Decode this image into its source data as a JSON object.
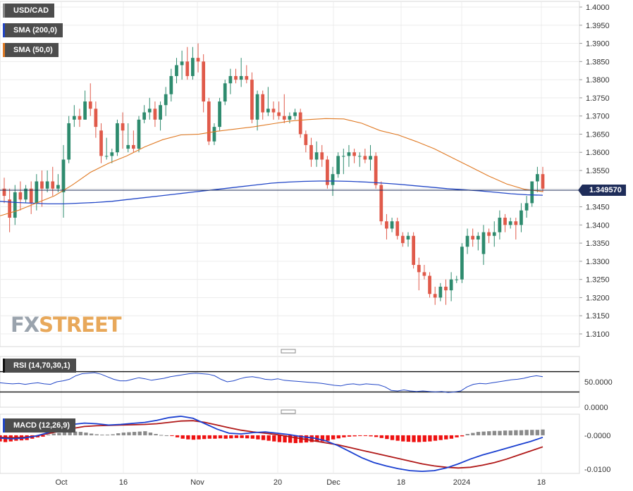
{
  "legends": {
    "main": "USD/CAD",
    "sma200": "SMA (200,0)",
    "sma50": "SMA (50,0)",
    "rsi": "RSI (14,70,30,1)",
    "macd": "MACD (12,26,9)"
  },
  "current_price": "1.349570",
  "logo": {
    "fx": "FX",
    "street": "STREET"
  },
  "colors": {
    "up": "#2e8b6e",
    "down": "#e05a4a",
    "sma200": "#2146c7",
    "sma50": "#e07a24",
    "macd_line": "#1a3fd0",
    "signal_line": "#b01818",
    "hist_pos": "#8a8a8a",
    "hist_neg": "#ee1111",
    "rsi_line": "#2146c7",
    "price_line": "#1f2d5a"
  },
  "chart_data": [
    {
      "type": "candlestick",
      "title": "USD/CAD",
      "y_ticks": [
        "1.4000",
        "1.3950",
        "1.3900",
        "1.3850",
        "1.3800",
        "1.3750",
        "1.3700",
        "1.3650",
        "1.3600",
        "1.3550",
        "1.3500",
        "1.3450",
        "1.3400",
        "1.3350",
        "1.3300",
        "1.3250",
        "1.3200",
        "1.3150",
        "1.3100"
      ],
      "x_ticks": [
        "Oct",
        "16",
        "Nov",
        "20",
        "Dec",
        "18",
        "2024",
        "18"
      ],
      "ylim": [
        1.306,
        1.401
      ],
      "ohlc": [
        [
          1.35,
          1.353,
          1.346,
          1.348
        ],
        [
          1.347,
          1.35,
          1.338,
          1.342
        ],
        [
          1.342,
          1.351,
          1.34,
          1.349
        ],
        [
          1.349,
          1.352,
          1.344,
          1.347
        ],
        [
          1.347,
          1.351,
          1.346,
          1.35
        ],
        [
          1.35,
          1.352,
          1.343,
          1.346
        ],
        [
          1.346,
          1.354,
          1.344,
          1.352
        ],
        [
          1.352,
          1.355,
          1.345,
          1.35
        ],
        [
          1.35,
          1.355,
          1.349,
          1.352
        ],
        [
          1.352,
          1.356,
          1.348,
          1.35
        ],
        [
          1.35,
          1.354,
          1.349,
          1.351
        ],
        [
          1.349,
          1.362,
          1.342,
          1.358
        ],
        [
          1.358,
          1.37,
          1.357,
          1.368
        ],
        [
          1.369,
          1.373,
          1.367,
          1.37
        ],
        [
          1.37,
          1.372,
          1.367,
          1.369
        ],
        [
          1.369,
          1.377,
          1.369,
          1.374
        ],
        [
          1.374,
          1.379,
          1.37,
          1.372
        ],
        [
          1.372,
          1.374,
          1.364,
          1.367
        ],
        [
          1.366,
          1.368,
          1.357,
          1.359
        ],
        [
          1.359,
          1.364,
          1.358,
          1.359
        ],
        [
          1.359,
          1.361,
          1.357,
          1.36
        ],
        [
          1.36,
          1.369,
          1.359,
          1.368
        ],
        [
          1.368,
          1.371,
          1.361,
          1.366
        ],
        [
          1.361,
          1.368,
          1.36,
          1.362
        ],
        [
          1.362,
          1.366,
          1.36,
          1.361
        ],
        [
          1.361,
          1.37,
          1.36,
          1.369
        ],
        [
          1.369,
          1.373,
          1.368,
          1.371
        ],
        [
          1.371,
          1.375,
          1.369,
          1.372
        ],
        [
          1.372,
          1.374,
          1.367,
          1.369
        ],
        [
          1.369,
          1.374,
          1.366,
          1.373
        ],
        [
          1.373,
          1.378,
          1.37,
          1.376
        ],
        [
          1.376,
          1.383,
          1.374,
          1.381
        ],
        [
          1.381,
          1.386,
          1.379,
          1.384
        ],
        [
          1.384,
          1.388,
          1.38,
          1.385
        ],
        [
          1.385,
          1.389,
          1.38,
          1.381
        ],
        [
          1.381,
          1.389,
          1.38,
          1.386
        ],
        [
          1.386,
          1.39,
          1.382,
          1.385
        ],
        [
          1.385,
          1.387,
          1.371,
          1.374
        ],
        [
          1.374,
          1.375,
          1.362,
          1.363
        ],
        [
          1.363,
          1.368,
          1.362,
          1.367
        ],
        [
          1.367,
          1.375,
          1.366,
          1.374
        ],
        [
          1.374,
          1.38,
          1.373,
          1.379
        ],
        [
          1.379,
          1.383,
          1.376,
          1.381
        ],
        [
          1.381,
          1.383,
          1.379,
          1.38
        ],
        [
          1.38,
          1.386,
          1.378,
          1.381
        ],
        [
          1.381,
          1.384,
          1.379,
          1.38
        ],
        [
          1.38,
          1.382,
          1.368,
          1.369
        ],
        [
          1.369,
          1.377,
          1.366,
          1.376
        ],
        [
          1.376,
          1.377,
          1.369,
          1.371
        ],
        [
          1.371,
          1.378,
          1.37,
          1.372
        ],
        [
          1.372,
          1.374,
          1.369,
          1.371
        ],
        [
          1.371,
          1.374,
          1.369,
          1.37
        ],
        [
          1.37,
          1.376,
          1.368,
          1.369
        ],
        [
          1.369,
          1.371,
          1.368,
          1.37
        ],
        [
          1.37,
          1.372,
          1.369,
          1.371
        ],
        [
          1.371,
          1.372,
          1.364,
          1.365
        ],
        [
          1.365,
          1.366,
          1.36,
          1.362
        ],
        [
          1.362,
          1.364,
          1.356,
          1.358
        ],
        [
          1.358,
          1.363,
          1.356,
          1.36
        ],
        [
          1.36,
          1.362,
          1.356,
          1.358
        ],
        [
          1.358,
          1.359,
          1.35,
          1.351
        ],
        [
          1.351,
          1.356,
          1.348,
          1.354
        ],
        [
          1.354,
          1.36,
          1.353,
          1.359
        ],
        [
          1.359,
          1.361,
          1.354,
          1.359
        ],
        [
          1.359,
          1.362,
          1.356,
          1.36
        ],
        [
          1.36,
          1.361,
          1.357,
          1.359
        ],
        [
          1.359,
          1.36,
          1.356,
          1.359
        ],
        [
          1.359,
          1.361,
          1.357,
          1.358
        ],
        [
          1.358,
          1.362,
          1.355,
          1.359
        ],
        [
          1.359,
          1.36,
          1.35,
          1.351
        ],
        [
          1.351,
          1.352,
          1.34,
          1.341
        ],
        [
          1.341,
          1.343,
          1.336,
          1.339
        ],
        [
          1.339,
          1.342,
          1.338,
          1.341
        ],
        [
          1.341,
          1.342,
          1.336,
          1.337
        ],
        [
          1.337,
          1.338,
          1.334,
          1.335
        ],
        [
          1.336,
          1.338,
          1.334,
          1.337
        ],
        [
          1.337,
          1.338,
          1.328,
          1.329
        ],
        [
          1.329,
          1.331,
          1.322,
          1.327
        ],
        [
          1.327,
          1.329,
          1.325,
          1.326
        ],
        [
          1.326,
          1.327,
          1.32,
          1.321
        ],
        [
          1.321,
          1.323,
          1.318,
          1.32
        ],
        [
          1.32,
          1.324,
          1.319,
          1.323
        ],
        [
          1.323,
          1.325,
          1.318,
          1.322
        ],
        [
          1.322,
          1.327,
          1.319,
          1.325
        ],
        [
          1.325,
          1.326,
          1.324,
          1.325
        ],
        [
          1.325,
          1.335,
          1.324,
          1.334
        ],
        [
          1.334,
          1.339,
          1.332,
          1.337
        ],
        [
          1.337,
          1.339,
          1.334,
          1.336
        ],
        [
          1.336,
          1.338,
          1.333,
          1.337
        ],
        [
          1.332,
          1.34,
          1.329,
          1.338
        ],
        [
          1.338,
          1.339,
          1.335,
          1.337
        ],
        [
          1.337,
          1.341,
          1.334,
          1.338
        ],
        [
          1.338,
          1.344,
          1.336,
          1.342
        ],
        [
          1.342,
          1.343,
          1.338,
          1.34
        ],
        [
          1.34,
          1.342,
          1.339,
          1.341
        ],
        [
          1.341,
          1.342,
          1.336,
          1.34
        ],
        [
          1.34,
          1.346,
          1.338,
          1.344
        ],
        [
          1.344,
          1.348,
          1.342,
          1.346
        ],
        [
          1.346,
          1.352,
          1.345,
          1.352
        ],
        [
          1.352,
          1.356,
          1.349,
          1.354
        ],
        [
          1.354,
          1.356,
          1.349,
          1.35
        ]
      ],
      "sma200": [
        1.3465,
        1.3462,
        1.346,
        1.3458,
        1.3458,
        1.346,
        1.3462,
        1.3465,
        1.347,
        1.3475,
        1.348,
        1.3485,
        1.349,
        1.3495,
        1.35,
        1.3505,
        1.351,
        1.3515,
        1.3518,
        1.352,
        1.3521,
        1.3521,
        1.352,
        1.3518,
        1.3515,
        1.3512,
        1.3508,
        1.3504,
        1.35,
        1.3497,
        1.3494,
        1.349,
        1.3486,
        1.3483,
        1.3482
      ],
      "sma50": [
        1.3425,
        1.344,
        1.346,
        1.348,
        1.351,
        1.3545,
        1.357,
        1.359,
        1.3615,
        1.3635,
        1.3648,
        1.365,
        1.3658,
        1.3664,
        1.367,
        1.3678,
        1.3686,
        1.369,
        1.3693,
        1.3692,
        1.368,
        1.366,
        1.3648,
        1.363,
        1.361,
        1.3585,
        1.356,
        1.3535,
        1.3513,
        1.3498,
        1.3492
      ],
      "rsi": {
        "levels": [
          "50.0000",
          "0.0000"
        ],
        "bands": [
          70,
          30
        ],
        "ylim": [
          0,
          100
        ],
        "values": [
          48,
          47,
          46,
          47,
          45,
          47,
          48,
          46,
          45,
          50,
          52,
          55,
          62,
          66,
          67,
          68,
          65,
          60,
          55,
          52,
          52,
          55,
          58,
          56,
          53,
          55,
          57,
          60,
          62,
          64,
          66,
          67,
          66,
          65,
          62,
          55,
          50,
          52,
          56,
          59,
          60,
          58,
          55,
          54,
          56,
          53,
          52,
          51,
          50,
          49,
          48,
          47,
          45,
          43,
          42,
          45,
          46,
          44,
          46,
          45,
          44,
          40,
          33,
          32,
          34,
          32,
          31,
          32,
          31,
          30,
          31,
          29,
          30,
          32,
          40,
          45,
          47,
          46,
          48,
          50,
          52,
          54,
          55,
          57,
          60,
          62,
          60
        ]
      },
      "macd": {
        "levels": [
          "-0.0000",
          "-0.0100"
        ],
        "ylim": [
          -0.0112,
          0.0062
        ],
        "macd": [
          -0.0008,
          -0.001,
          -0.0008,
          -0.0002,
          0.0008,
          0.002,
          0.0032,
          0.0036,
          0.0034,
          0.003,
          0.0032,
          0.0035,
          0.0038,
          0.0044,
          0.0052,
          0.0056,
          0.005,
          0.0034,
          0.0018,
          0.0006,
          0.0004,
          0.0008,
          0.001,
          0.0006,
          0.0002,
          -0.0004,
          -0.0008,
          -0.0016,
          -0.003,
          -0.0048,
          -0.0066,
          -0.008,
          -0.009,
          -0.0098,
          -0.0104,
          -0.0106,
          -0.0104,
          -0.0096,
          -0.0084,
          -0.007,
          -0.0058,
          -0.0048,
          -0.0038,
          -0.0028,
          -0.0018,
          -0.0006
        ],
        "signal": [
          -0.0006,
          -0.0007,
          -0.0006,
          -0.0002,
          0.0005,
          0.0012,
          0.002,
          0.0026,
          0.0028,
          0.0029,
          0.003,
          0.0031,
          0.0032,
          0.0034,
          0.0038,
          0.0042,
          0.0043,
          0.0038,
          0.003,
          0.0022,
          0.0015,
          0.001,
          0.0006,
          0.0002,
          -0.0004,
          -0.001,
          -0.0016,
          -0.0022,
          -0.0028,
          -0.0036,
          -0.0044,
          -0.0052,
          -0.006,
          -0.0068,
          -0.0076,
          -0.0084,
          -0.009,
          -0.0094,
          -0.0096,
          -0.0094,
          -0.0088,
          -0.008,
          -0.007,
          -0.0058,
          -0.0046,
          -0.0034
        ],
        "histogram": [
          -0.0018,
          -0.002,
          -0.0018,
          -0.0016,
          -0.0015,
          -0.0014,
          -0.001,
          -0.0006,
          -0.0004,
          0.0002,
          0.0005,
          0.0007,
          0.0009,
          0.0012,
          0.0011,
          0.001,
          0.0008,
          0.0005,
          0.0003,
          0.0002,
          0.0002,
          0.0003,
          0.0006,
          0.0008,
          0.0009,
          0.001,
          0.0011,
          0.0012,
          0.0008,
          0.0004,
          0.0001,
          0.0,
          -0.0002,
          -0.0006,
          -0.001,
          -0.0012,
          -0.0013,
          -0.0012,
          -0.0011,
          -0.001,
          -0.001,
          -0.0009,
          -0.001,
          -0.0009,
          -0.0008,
          -0.0008,
          -0.0009,
          -0.001,
          -0.0012,
          -0.0014,
          -0.0016,
          -0.0018,
          -0.002,
          -0.0021,
          -0.0022,
          -0.0023,
          -0.0022,
          -0.0021,
          -0.002,
          -0.0019,
          -0.0018,
          -0.0016,
          -0.0012,
          -0.0009,
          -0.0006,
          -0.0004,
          -0.0003,
          -0.0001,
          -0.0002,
          -0.0003,
          -0.0005,
          -0.0008,
          -0.0011,
          -0.0014,
          -0.0016,
          -0.0018,
          -0.0019,
          -0.002,
          -0.002,
          -0.0019,
          -0.0018,
          -0.0016,
          -0.0014,
          -0.0012,
          -0.001,
          -0.0006,
          -0.0003,
          0.0004,
          0.0007,
          0.001,
          0.0011,
          0.0012,
          0.0013,
          0.0013,
          0.0014,
          0.0014,
          0.0015,
          0.0015,
          0.0016,
          0.0016,
          0.0016,
          0.0017
        ]
      }
    }
  ]
}
